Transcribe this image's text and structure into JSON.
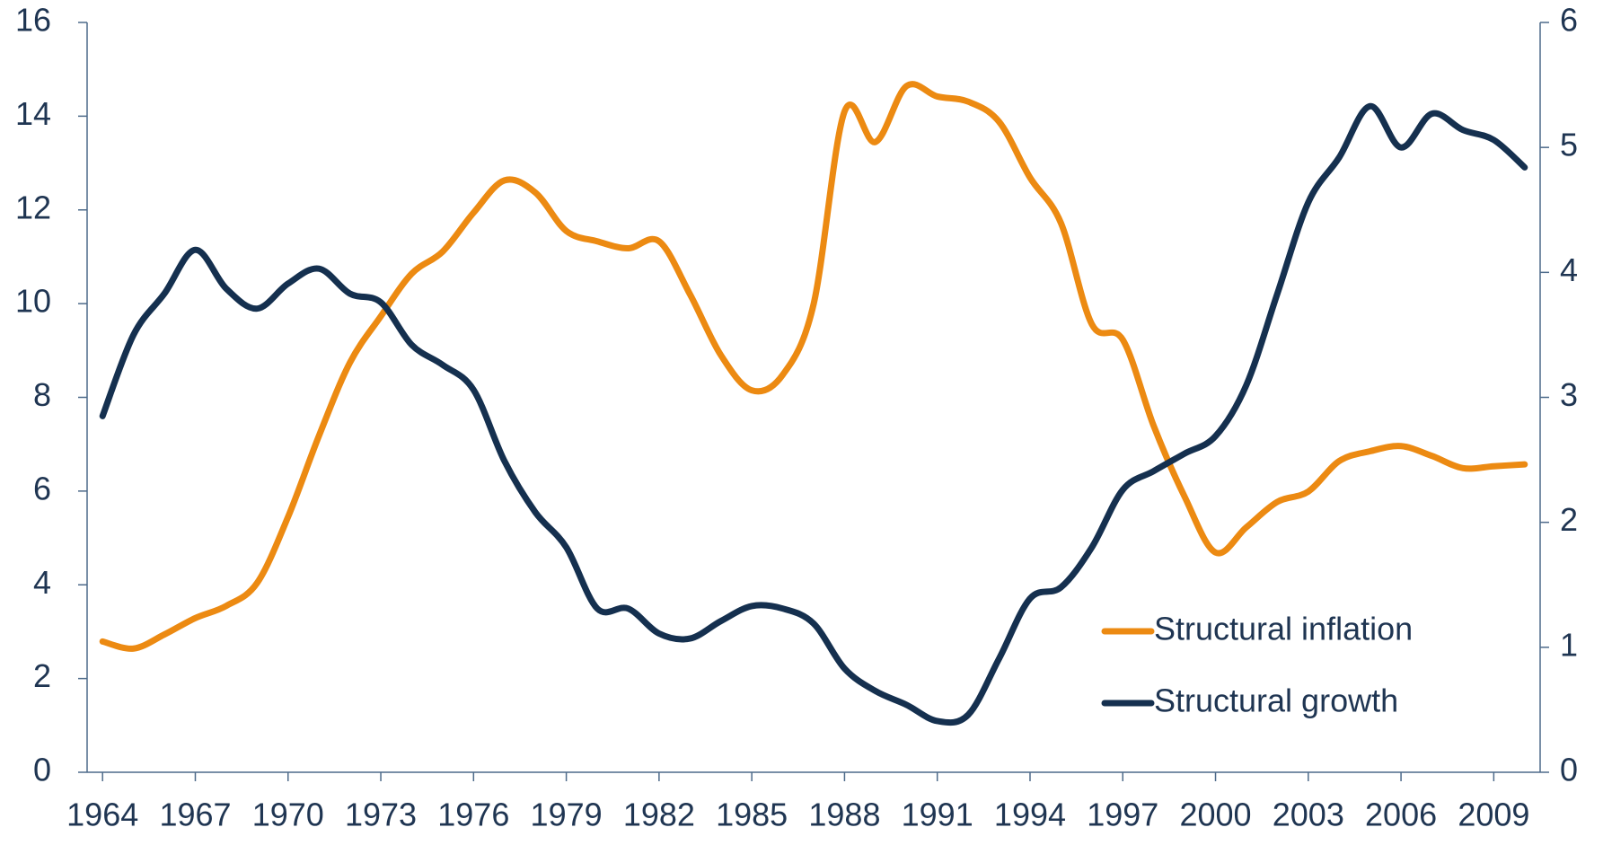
{
  "chart_data": {
    "type": "line",
    "x": [
      1964,
      1965,
      1966,
      1967,
      1968,
      1969,
      1970,
      1971,
      1972,
      1973,
      1974,
      1975,
      1976,
      1977,
      1978,
      1979,
      1980,
      1981,
      1982,
      1983,
      1984,
      1985,
      1986,
      1987,
      1988,
      1989,
      1990,
      1991,
      1992,
      1993,
      1994,
      1995,
      1996,
      1997,
      1998,
      1999,
      2000,
      2001,
      2002,
      2003,
      2004,
      2005,
      2006,
      2007,
      2008,
      2009,
      2010
    ],
    "series": [
      {
        "name": "Structural inflation",
        "color": "#ec8a12",
        "axis": "y",
        "values": [
          2.79,
          2.64,
          2.94,
          3.29,
          3.55,
          4.04,
          5.45,
          7.18,
          8.74,
          9.73,
          10.64,
          11.11,
          11.94,
          12.63,
          12.37,
          11.55,
          11.33,
          11.18,
          11.33,
          10.2,
          8.9,
          8.15,
          8.48,
          9.99,
          14.1,
          13.45,
          14.64,
          14.42,
          14.31,
          13.88,
          12.69,
          11.72,
          9.56,
          9.23,
          7.39,
          5.88,
          4.69,
          5.23,
          5.77,
          5.99,
          6.64,
          6.85,
          6.96,
          6.75,
          6.49,
          6.53,
          6.57
        ]
      },
      {
        "name": "Structural growth",
        "color": "#15304f",
        "axis": "y2",
        "values": [
          2.85,
          3.5,
          3.83,
          4.18,
          3.87,
          3.71,
          3.91,
          4.03,
          3.83,
          3.76,
          3.42,
          3.26,
          3.06,
          2.49,
          2.08,
          1.8,
          1.31,
          1.31,
          1.11,
          1.07,
          1.21,
          1.33,
          1.31,
          1.19,
          0.83,
          0.65,
          0.54,
          0.41,
          0.46,
          0.91,
          1.39,
          1.48,
          1.8,
          2.26,
          2.41,
          2.55,
          2.69,
          3.1,
          3.83,
          4.56,
          4.92,
          5.33,
          5.0,
          5.27,
          5.14,
          5.06,
          4.84
        ]
      }
    ],
    "xlim": [
      1963.5,
      2010.5
    ],
    "xticks": [
      1964,
      1967,
      1970,
      1973,
      1976,
      1979,
      1982,
      1985,
      1988,
      1991,
      1994,
      1997,
      2000,
      2003,
      2006,
      2009
    ],
    "ylim": [
      0,
      16
    ],
    "yticks": [
      0,
      2,
      4,
      6,
      8,
      10,
      12,
      14,
      16
    ],
    "y2lim": [
      0,
      6
    ],
    "y2ticks": [
      0,
      1,
      2,
      3,
      4,
      5,
      6
    ],
    "legend": "lower right"
  }
}
